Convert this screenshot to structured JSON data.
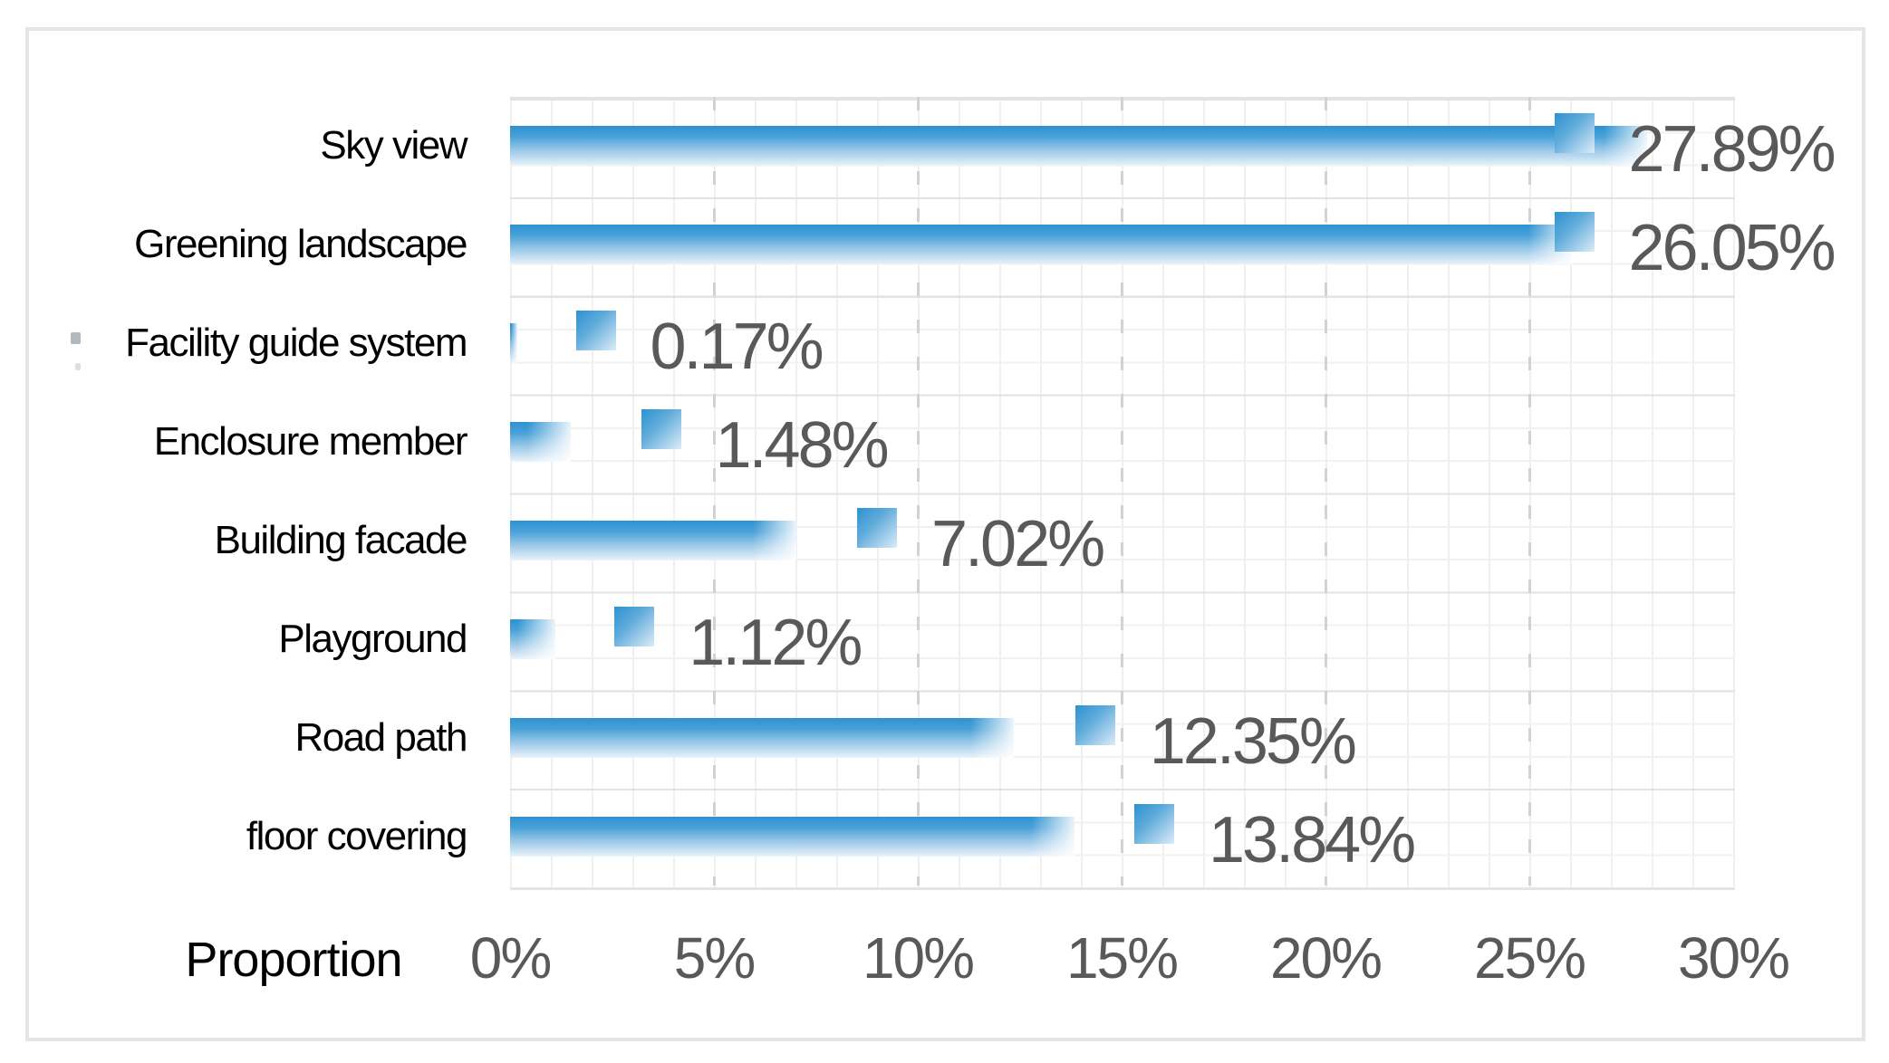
{
  "chart_data": {
    "type": "bar",
    "orientation": "horizontal",
    "xlabel": "Proportion",
    "x_ticks": [
      "0%",
      "5%",
      "10%",
      "15%",
      "20%",
      "25%",
      "30%"
    ],
    "xlim": [
      0,
      30
    ],
    "x_major_step_pct": 5,
    "x_minor_step_pct": 1,
    "grid": "minor mesh with dashed major verticals",
    "legend_position": "none",
    "categories": [
      "Sky view",
      "Greening landscape",
      "Facility guide system",
      "Enclosure member",
      "Building facade",
      "Playground",
      "Road path",
      "floor covering"
    ],
    "values": [
      27.89,
      26.05,
      0.17,
      1.48,
      7.02,
      1.12,
      12.35,
      13.84
    ],
    "value_labels": [
      "27.89%",
      "26.05%",
      "0.17%",
      "1.48%",
      "7.02%",
      "1.12%",
      "12.35%",
      "13.84%"
    ],
    "marker_pct": [
      26.1,
      26.1,
      2.1,
      3.7,
      9.0,
      3.05,
      14.35,
      15.8
    ]
  },
  "colors": {
    "bar_gradient_top": "#2d92d0",
    "bar_gradient_bottom": "#e9f3fa",
    "marker_gradient_start": "#2d92d0",
    "marker_gradient_end": "#dcecf7",
    "data_label": "#595959",
    "axis_tick_label": "#595959",
    "category_label": "#000000",
    "grid_minor": "#f0f0f0",
    "grid_major_dashed": "#d2d2d2",
    "row_boundary": "#e2e2e2",
    "frame_border": "#e3e6e8"
  }
}
